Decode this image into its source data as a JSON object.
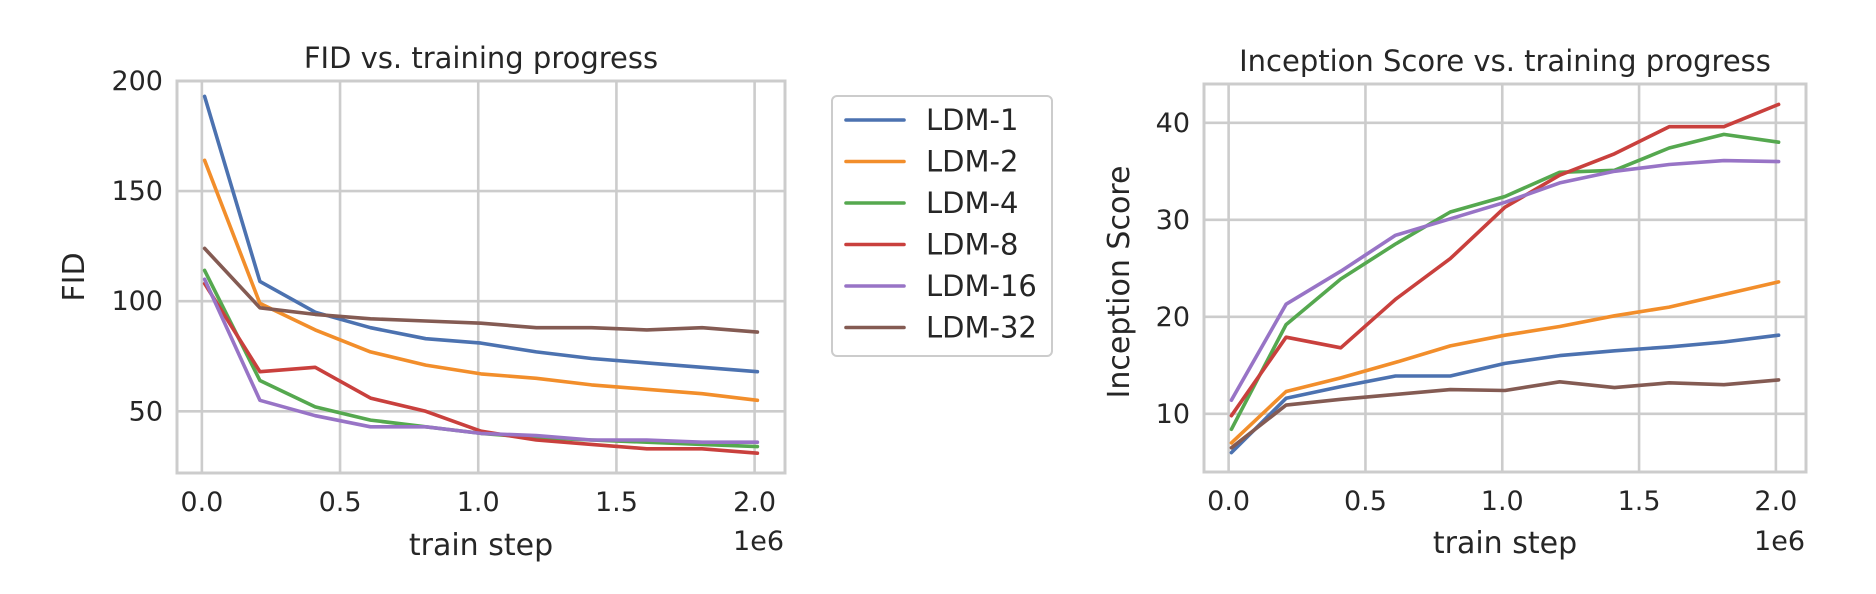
{
  "chart_data": [
    {
      "type": "line",
      "title": "FID vs. training progress",
      "xlabel": "train step",
      "ylabel": "FID",
      "x_offset_label": "1e6",
      "xlim": [
        -0.09,
        2.11
      ],
      "ylim": [
        22,
        200
      ],
      "xticks": [
        0.0,
        0.5,
        1.0,
        1.5,
        2.0
      ],
      "xtick_labels": [
        "0.0",
        "0.5",
        "1.0",
        "1.5",
        "2.0"
      ],
      "yticks": [
        50,
        100,
        150,
        200
      ],
      "ytick_labels": [
        "50",
        "100",
        "150",
        "200"
      ],
      "grid": true,
      "legend_position": "outside right",
      "x": [
        0.01,
        0.21,
        0.41,
        0.61,
        0.81,
        1.01,
        1.21,
        1.41,
        1.61,
        1.81,
        2.01
      ],
      "series": [
        {
          "name": "LDM-1",
          "color": "#4c72b0",
          "values": [
            193,
            109,
            95,
            88,
            83,
            81,
            77,
            74,
            72,
            70,
            68
          ]
        },
        {
          "name": "LDM-2",
          "color": "#f28e2b",
          "values": [
            164,
            99,
            87,
            77,
            71,
            67,
            65,
            62,
            60,
            58,
            55
          ]
        },
        {
          "name": "LDM-4",
          "color": "#55a84f",
          "values": [
            114,
            64,
            52,
            46,
            43,
            40,
            38,
            37,
            36,
            35,
            34
          ]
        },
        {
          "name": "LDM-8",
          "color": "#c9403d",
          "values": [
            108,
            68,
            70,
            56,
            50,
            41,
            37,
            35,
            33,
            33,
            31
          ]
        },
        {
          "name": "LDM-16",
          "color": "#9874c6",
          "values": [
            110,
            55,
            48,
            43,
            43,
            40,
            39,
            37,
            37,
            36,
            36
          ]
        },
        {
          "name": "LDM-32",
          "color": "#845b53",
          "values": [
            124,
            97,
            94,
            92,
            91,
            90,
            88,
            88,
            87,
            88,
            86
          ]
        }
      ]
    },
    {
      "type": "line",
      "title": "Inception Score vs. training progress",
      "xlabel": "train step",
      "ylabel": "Inception Score",
      "x_offset_label": "1e6",
      "xlim": [
        -0.09,
        2.11
      ],
      "ylim": [
        4,
        44
      ],
      "xticks": [
        0.0,
        0.5,
        1.0,
        1.5,
        2.0
      ],
      "xtick_labels": [
        "0.0",
        "0.5",
        "1.0",
        "1.5",
        "2.0"
      ],
      "yticks": [
        10,
        20,
        30,
        40
      ],
      "ytick_labels": [
        "10",
        "20",
        "30",
        "40"
      ],
      "grid": true,
      "x": [
        0.01,
        0.21,
        0.41,
        0.61,
        0.81,
        1.01,
        1.21,
        1.41,
        1.61,
        1.81,
        2.01
      ],
      "series": [
        {
          "name": "LDM-1",
          "color": "#4c72b0",
          "values": [
            6.0,
            11.6,
            12.8,
            13.9,
            13.9,
            15.2,
            16.0,
            16.5,
            16.9,
            17.4,
            18.1
          ]
        },
        {
          "name": "LDM-2",
          "color": "#f28e2b",
          "values": [
            7.0,
            12.3,
            13.7,
            15.3,
            17.0,
            18.1,
            19.0,
            20.1,
            21.0,
            22.3,
            23.6
          ]
        },
        {
          "name": "LDM-4",
          "color": "#55a84f",
          "values": [
            8.4,
            19.2,
            23.9,
            27.5,
            30.8,
            32.4,
            34.9,
            35.1,
            37.4,
            38.8,
            38.0
          ]
        },
        {
          "name": "LDM-8",
          "color": "#c9403d",
          "values": [
            9.8,
            17.9,
            16.8,
            21.8,
            26.0,
            31.3,
            34.6,
            36.8,
            39.6,
            39.6,
            41.9
          ]
        },
        {
          "name": "LDM-16",
          "color": "#9874c6",
          "values": [
            11.4,
            21.3,
            24.7,
            28.4,
            30.1,
            31.8,
            33.8,
            35.0,
            35.7,
            36.1,
            36.0
          ]
        },
        {
          "name": "LDM-32",
          "color": "#845b53",
          "values": [
            6.5,
            10.9,
            11.5,
            12.0,
            12.5,
            12.4,
            13.3,
            12.7,
            13.2,
            13.0,
            13.5
          ]
        }
      ]
    }
  ]
}
